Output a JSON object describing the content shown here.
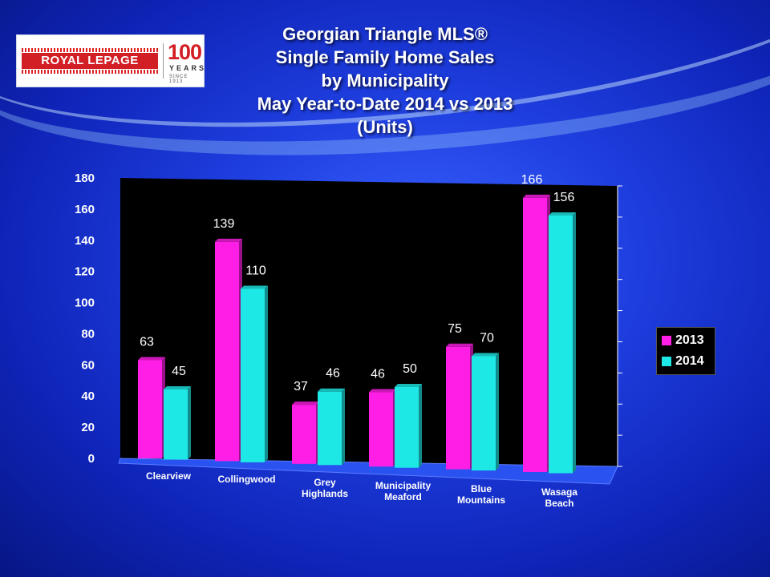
{
  "logo": {
    "brand": "ROYAL LEPAGE",
    "hundred": "100",
    "years": "YEARS",
    "since": "SINCE 1913"
  },
  "title_lines": [
    "Georgian Triangle MLS®",
    "Single Family Home Sales",
    "by Municipality",
    "May Year-to-Date 2014 vs 2013",
    "(Units)"
  ],
  "colors": {
    "series_2013": "#ff1ee6",
    "series_2014": "#1ee8e6",
    "plot_back": "#000000"
  },
  "chart_data": {
    "type": "bar",
    "title": "Georgian Triangle MLS® Single Family Home Sales by Municipality May Year-to-Date 2014 vs 2013 (Units)",
    "categories": [
      [
        "Clearview"
      ],
      [
        "Collingwood"
      ],
      [
        "Grey",
        "Highlands"
      ],
      [
        "Municipality",
        "Meaford"
      ],
      [
        "Blue",
        "Mountains"
      ],
      [
        "Wasaga",
        "Beach"
      ]
    ],
    "series": [
      {
        "name": "2013",
        "values": [
          63,
          139,
          37,
          46,
          75,
          166
        ]
      },
      {
        "name": "2014",
        "values": [
          45,
          110,
          46,
          50,
          70,
          156
        ]
      }
    ],
    "ylim": [
      0,
      180
    ],
    "yticks": [
      0,
      20,
      40,
      60,
      80,
      100,
      120,
      140,
      160,
      180
    ],
    "legend": "right",
    "grid": false
  }
}
